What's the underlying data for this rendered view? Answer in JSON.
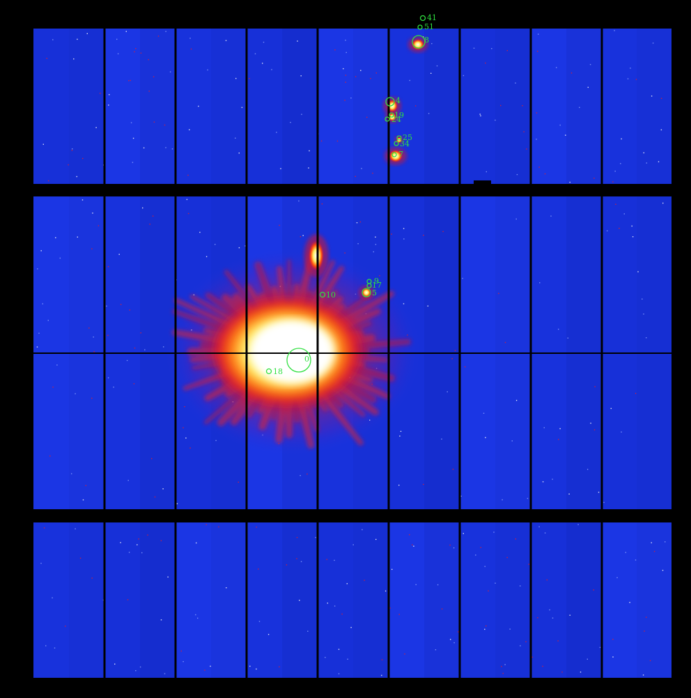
{
  "colors": {
    "background": "#000000",
    "sky": "#1a34e0",
    "sky_dark": "#1226b0",
    "chip_gap": "#000000",
    "glow_red": "#e01828",
    "glow_orange": "#ff7a10",
    "glow_yellow": "#fff060",
    "core": "#ffffff",
    "region": "#30e040"
  },
  "regions": [
    {
      "id": "region-41",
      "label": "41"
    },
    {
      "id": "region-51",
      "label": "51"
    },
    {
      "id": "region-8",
      "label": "8"
    },
    {
      "id": "region-4",
      "label": "4"
    },
    {
      "id": "region-19",
      "label": "19"
    },
    {
      "id": "region-24",
      "label": "24"
    },
    {
      "id": "region-25",
      "label": "25"
    },
    {
      "id": "region-34",
      "label": "34"
    },
    {
      "id": "region-7",
      "label": "7"
    },
    {
      "id": "region-9",
      "label": "9"
    },
    {
      "id": "region-17",
      "label": "17"
    },
    {
      "id": "region-5",
      "label": "5"
    },
    {
      "id": "region-10",
      "label": "10"
    },
    {
      "id": "region-0",
      "label": "0"
    },
    {
      "id": "region-18",
      "label": "18"
    }
  ]
}
